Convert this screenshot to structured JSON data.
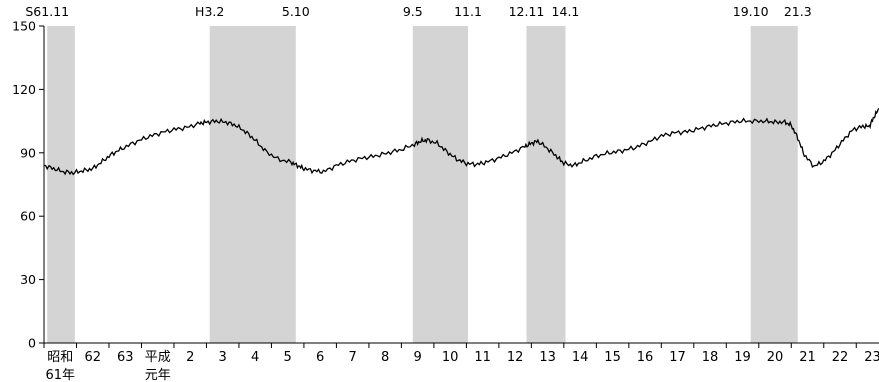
{
  "chart_data": {
    "type": "line",
    "ylim": [
      0,
      150
    ],
    "yticks": [
      0,
      30,
      60,
      90,
      120,
      150
    ],
    "xlim": [
      0,
      25.7
    ],
    "x_ticks": [
      {
        "x": 0.5,
        "label": "昭和",
        "label2": "61年"
      },
      {
        "x": 1.5,
        "label": "62",
        "label2": ""
      },
      {
        "x": 2.5,
        "label": "63",
        "label2": ""
      },
      {
        "x": 3.5,
        "label": "平成",
        "label2": "元年"
      },
      {
        "x": 4.5,
        "label": "2",
        "label2": ""
      },
      {
        "x": 5.5,
        "label": "3",
        "label2": ""
      },
      {
        "x": 6.5,
        "label": "4",
        "label2": ""
      },
      {
        "x": 7.5,
        "label": "5",
        "label2": ""
      },
      {
        "x": 8.5,
        "label": "6",
        "label2": ""
      },
      {
        "x": 9.5,
        "label": "7",
        "label2": ""
      },
      {
        "x": 10.5,
        "label": "8",
        "label2": ""
      },
      {
        "x": 11.5,
        "label": "9",
        "label2": ""
      },
      {
        "x": 12.5,
        "label": "10",
        "label2": ""
      },
      {
        "x": 13.5,
        "label": "11",
        "label2": ""
      },
      {
        "x": 14.5,
        "label": "12",
        "label2": ""
      },
      {
        "x": 15.5,
        "label": "13",
        "label2": ""
      },
      {
        "x": 16.5,
        "label": "14",
        "label2": ""
      },
      {
        "x": 17.5,
        "label": "15",
        "label2": ""
      },
      {
        "x": 18.5,
        "label": "16",
        "label2": ""
      },
      {
        "x": 19.5,
        "label": "17",
        "label2": ""
      },
      {
        "x": 20.5,
        "label": "18",
        "label2": ""
      },
      {
        "x": 21.5,
        "label": "19",
        "label2": ""
      },
      {
        "x": 22.5,
        "label": "20",
        "label2": ""
      },
      {
        "x": 23.5,
        "label": "21",
        "label2": ""
      },
      {
        "x": 24.5,
        "label": "22",
        "label2": ""
      },
      {
        "x": 25.5,
        "label": "23",
        "label2": ""
      }
    ],
    "recessions": [
      {
        "start": 0.1,
        "end": 0.95,
        "start_label": "S61.11",
        "end_label": ""
      },
      {
        "start": 5.1,
        "end": 7.75,
        "start_label": "H3.2",
        "end_label": "5.10"
      },
      {
        "start": 11.35,
        "end": 13.05,
        "start_label": "9.5",
        "end_label": "11.1"
      },
      {
        "start": 14.85,
        "end": 16.05,
        "start_label": "12.11",
        "end_label": "14.1"
      },
      {
        "start": 21.75,
        "end": 23.2,
        "start_label": "19.10",
        "end_label": "21.3"
      }
    ],
    "series": [
      {
        "x": [
          0,
          0.3,
          0.6,
          0.9,
          1.2,
          1.5,
          1.8,
          2.1,
          2.4,
          2.8,
          3.2,
          3.6,
          4.0,
          4.4,
          4.8,
          5.0,
          5.3,
          5.6,
          5.9,
          6.2,
          6.5,
          6.8,
          7.2,
          7.6,
          7.8,
          8.0,
          8.3,
          8.6,
          9.0,
          9.4,
          9.8,
          10.2,
          10.6,
          11.0,
          11.4,
          11.6,
          11.8,
          12.1,
          12.4,
          12.7,
          13.0,
          13.3,
          13.6,
          14.0,
          14.4,
          14.8,
          15.0,
          15.2,
          15.5,
          15.8,
          16.0,
          16.3,
          16.6,
          17.0,
          17.4,
          17.8,
          18.2,
          18.6,
          19.0,
          19.4,
          19.8,
          20.2,
          20.6,
          21.0,
          21.4,
          21.8,
          22.2,
          22.5,
          22.8,
          23.0,
          23.2,
          23.4,
          23.7,
          24.0,
          24.3,
          24.6,
          24.9,
          25.2,
          25.4,
          25.55,
          25.7
        ],
        "y": [
          84,
          82.5,
          81,
          80.5,
          81.5,
          82.5,
          86,
          89.5,
          92,
          95,
          97.5,
          99.5,
          101,
          102,
          104,
          104.5,
          105,
          104.5,
          103,
          100,
          96,
          91,
          87,
          85.5,
          84,
          82.5,
          81.5,
          81,
          84,
          86,
          87.5,
          88.5,
          90,
          91.5,
          94,
          95.5,
          96,
          94.5,
          90.5,
          87,
          85,
          84.5,
          85.5,
          87.5,
          90,
          93,
          94.5,
          95.5,
          92,
          88,
          85,
          84,
          86,
          88.5,
          90,
          91,
          92.5,
          95,
          98,
          99.5,
          100,
          101.5,
          103,
          104,
          105,
          105,
          105,
          104.5,
          104.5,
          103,
          97,
          89,
          83.5,
          86,
          90.5,
          96,
          101,
          102.5,
          102.5,
          107,
          111
        ]
      }
    ]
  }
}
